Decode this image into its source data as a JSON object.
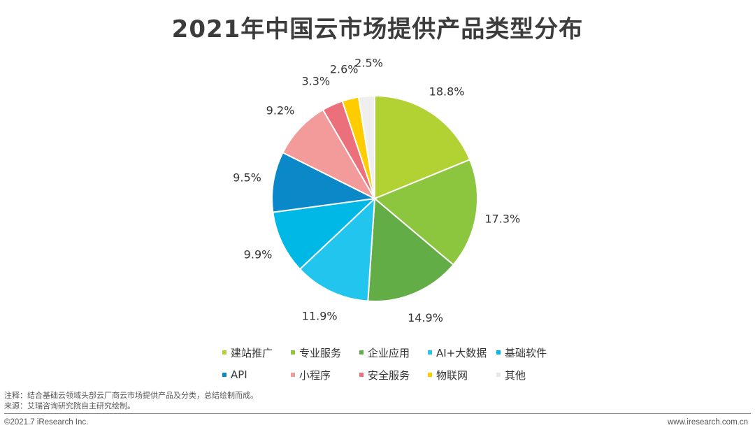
{
  "title": "2021年中国云市场提供产品类型分布",
  "chart_data": {
    "type": "pie",
    "title": "2021年中国云市场提供产品类型分布",
    "slices": [
      {
        "label": "建站推广",
        "value": 18.8,
        "display": "18.8%",
        "color": "#b2d234"
      },
      {
        "label": "专业服务",
        "value": 17.3,
        "display": "17.3%",
        "color": "#8cc63f"
      },
      {
        "label": "企业应用",
        "value": 14.9,
        "display": "14.9%",
        "color": "#62ad45"
      },
      {
        "label": "AI+大数据",
        "value": 11.9,
        "display": "11.9%",
        "color": "#22c5ee"
      },
      {
        "label": "基础软件",
        "value": 9.9,
        "display": "9.9%",
        "color": "#00b8e6"
      },
      {
        "label": "API",
        "value": 9.5,
        "display": "9.5%",
        "color": "#0a88c8"
      },
      {
        "label": "小程序",
        "value": 9.2,
        "display": "9.2%",
        "color": "#f39a9a"
      },
      {
        "label": "安全服务",
        "value": 3.3,
        "display": "3.3%",
        "color": "#ec6f7c"
      },
      {
        "label": "物联网",
        "value": 2.6,
        "display": "2.6%",
        "color": "#ffcc00"
      },
      {
        "label": "其他",
        "value": 2.5,
        "display": "2.5%",
        "color": "#efefef"
      }
    ],
    "legend_position": "bottom",
    "start": "top",
    "direction": "clockwise"
  },
  "legend_rows": [
    [
      0,
      1,
      2,
      3,
      4
    ],
    [
      5,
      6,
      7,
      8,
      9
    ]
  ],
  "notes": {
    "note": "注释：结合基础云领域头部云厂商云市场提供产品及分类，总结绘制而成。",
    "source": "来源：艾瑞咨询研究院自主研究绘制。"
  },
  "footer": {
    "copyright": "©2021.7 iResearch Inc.",
    "website": "www.iresearch.com.cn"
  }
}
